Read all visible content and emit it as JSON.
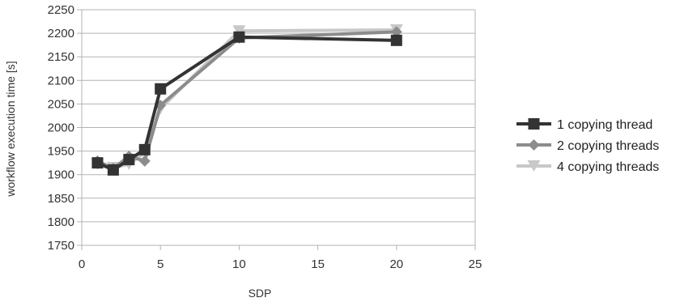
{
  "chart_data": {
    "type": "line",
    "title": "",
    "xlabel": "SDP",
    "ylabel": "workflow execution time [s]",
    "xlim": [
      0,
      25
    ],
    "ylim": [
      1750,
      2250
    ],
    "x_ticks": [
      0,
      5,
      10,
      15,
      20,
      25
    ],
    "y_ticks": [
      1750,
      1800,
      1850,
      1900,
      1950,
      2000,
      2050,
      2100,
      2150,
      2200,
      2250
    ],
    "grid": "horizontal",
    "legend_position": "right",
    "series": [
      {
        "name": "1 copying thread",
        "color": "#333333",
        "marker": "square",
        "x": [
          1,
          2,
          3,
          4,
          5,
          10,
          20
        ],
        "values": [
          1925,
          1910,
          1932,
          1953,
          2082,
          2192,
          2185
        ]
      },
      {
        "name": "2 copying threads",
        "color": "#8c8c8c",
        "marker": "diamond",
        "x": [
          1,
          2,
          3,
          4,
          5,
          10,
          20
        ],
        "values": [
          1929,
          1913,
          1939,
          1929,
          2047,
          2190,
          2203
        ]
      },
      {
        "name": "4 copying threads",
        "color": "#c8c8c8",
        "marker": "triangle-down",
        "x": [
          1,
          2,
          3,
          4,
          5,
          10,
          20
        ],
        "values": [
          1922,
          1915,
          1922,
          1947,
          2040,
          2205,
          2207
        ]
      }
    ]
  }
}
